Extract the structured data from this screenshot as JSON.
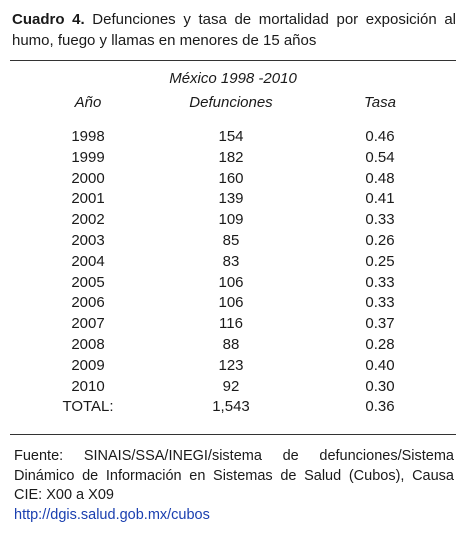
{
  "title": {
    "label": "Cuadro 4.",
    "text": " Defunciones y tasa de mortalidad  por exposición al humo, fuego y llamas en menores de 15 años"
  },
  "table": {
    "period": "México 1998 -2010",
    "headers": {
      "year": "Año",
      "deaths": "Defunciones",
      "rate": "Tasa"
    },
    "rows": [
      {
        "year": "1998",
        "deaths": "154",
        "rate": "0.46"
      },
      {
        "year": "1999",
        "deaths": "182",
        "rate": "0.54"
      },
      {
        "year": "2000",
        "deaths": "160",
        "rate": "0.48"
      },
      {
        "year": "2001",
        "deaths": "139",
        "rate": "0.41"
      },
      {
        "year": "2002",
        "deaths": "109",
        "rate": "0.33"
      },
      {
        "year": "2003",
        "deaths": "85",
        "rate": "0.26"
      },
      {
        "year": "2004",
        "deaths": "83",
        "rate": "0.25"
      },
      {
        "year": "2005",
        "deaths": "106",
        "rate": "0.33"
      },
      {
        "year": "2006",
        "deaths": "106",
        "rate": "0.33"
      },
      {
        "year": "2007",
        "deaths": "116",
        "rate": "0.37"
      },
      {
        "year": "2008",
        "deaths": "88",
        "rate": "0.28"
      },
      {
        "year": "2009",
        "deaths": "123",
        "rate": "0.40"
      },
      {
        "year": "2010",
        "deaths": "92",
        "rate": "0.30"
      },
      {
        "year": "TOTAL:",
        "deaths": "1,543",
        "rate": "0.36"
      }
    ]
  },
  "source": {
    "text": "Fuente:   SINAIS/SSA/INEGI/sistema de defunciones/Sistema Dinámico de Información en Sistemas de Salud   (Cubos), Causa CIE: X00 a X09",
    "link": "http://dgis.salud.gob.mx/cubos"
  },
  "colors": {
    "text": "#1a1a1a",
    "link": "#1a3fb0",
    "rule": "#333333",
    "background": "#ffffff"
  }
}
